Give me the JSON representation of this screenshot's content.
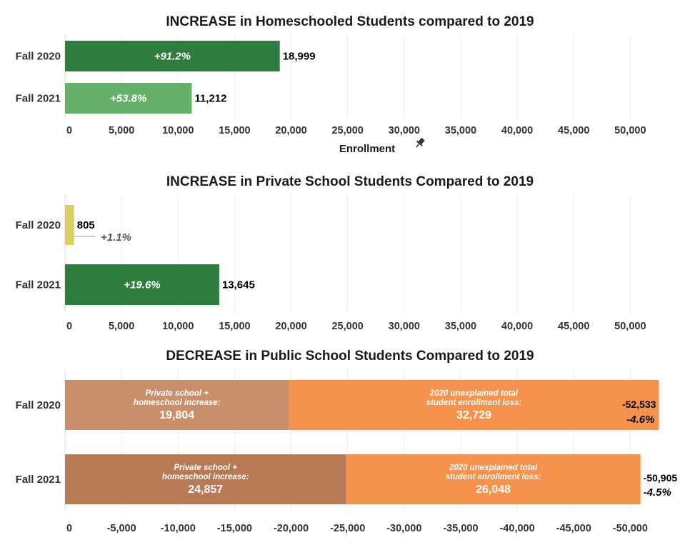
{
  "chart_data": [
    {
      "type": "bar",
      "orientation": "horizontal",
      "title": "INCREASE in Homeschooled Students compared to 2019",
      "categories": [
        "Fall 2020",
        "Fall 2021"
      ],
      "values": [
        18999,
        11212
      ],
      "value_labels": [
        "18,999",
        "11,212"
      ],
      "percent_labels": [
        "+91.2%",
        "+53.8%"
      ],
      "colors": [
        "#2e7d3f",
        "#66b169"
      ],
      "xlabel": "Enrollment",
      "xlabel_icon": "pin-icon",
      "xlim": [
        0,
        55000
      ],
      "xticks": [
        "0",
        "5,000",
        "10,000",
        "15,000",
        "20,000",
        "25,000",
        "30,000",
        "35,000",
        "40,000",
        "45,000",
        "50,000"
      ],
      "grid": true
    },
    {
      "type": "bar",
      "orientation": "horizontal",
      "title": "INCREASE in Private School Students Compared to 2019",
      "categories": [
        "Fall 2020",
        "Fall 2021"
      ],
      "values": [
        805,
        13645
      ],
      "value_labels": [
        "805",
        "13,645"
      ],
      "percent_labels": [
        "+1.1%",
        "+19.6%"
      ],
      "colors": [
        "#d9cf62",
        "#2e7d3f"
      ],
      "xlim": [
        0,
        55000
      ],
      "xticks": [
        "0",
        "5,000",
        "10,000",
        "15,000",
        "20,000",
        "25,000",
        "30,000",
        "35,000",
        "40,000",
        "45,000",
        "50,000"
      ],
      "grid": true
    },
    {
      "type": "bar",
      "orientation": "horizontal",
      "stacked": true,
      "title": "DECREASE in Public School Students Compared to 2019",
      "categories": [
        "Fall 2020",
        "Fall 2021"
      ],
      "series": [
        {
          "name": "Private school + homeschool increase",
          "values": [
            -19804,
            -24857
          ],
          "segment_label_lines": [
            "Private school +",
            "homeschool increase:"
          ],
          "segment_value_labels": [
            "19,804",
            "24,857"
          ],
          "colors": [
            "#c98f6a",
            "#b87a55"
          ]
        },
        {
          "name": "2020 unexplained total student enrollment loss",
          "values": [
            -32729,
            -26048
          ],
          "segment_label_lines": [
            "2020 unexplained total",
            "student enrollment loss:"
          ],
          "segment_value_labels": [
            "32,729",
            "26,048"
          ],
          "colors": [
            "#f5924e",
            "#f5924e"
          ]
        }
      ],
      "totals": [
        -52533,
        -50905
      ],
      "total_labels": [
        "-52,533",
        "-50,905"
      ],
      "percent_labels": [
        "-4.6%",
        "-4.5%"
      ],
      "xlim": [
        0,
        -55000
      ],
      "xticks": [
        "0",
        "-5,000",
        "-10,000",
        "-15,000",
        "-20,000",
        "-25,000",
        "-30,000",
        "-35,000",
        "-40,000",
        "-45,000",
        "-50,000"
      ],
      "grid": true
    }
  ]
}
